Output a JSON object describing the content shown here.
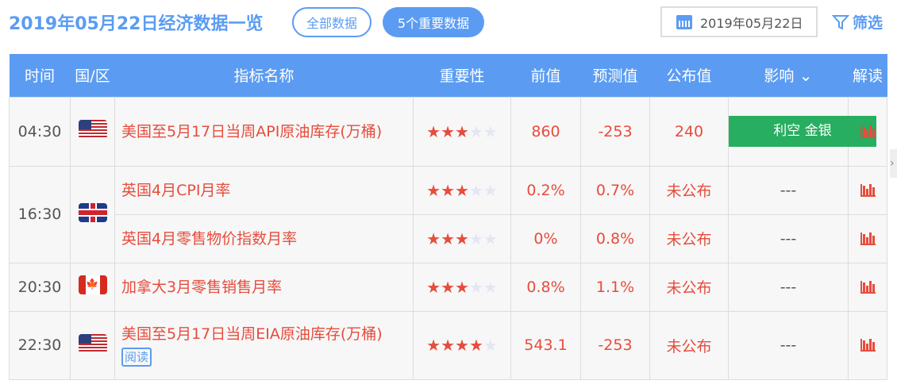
{
  "header": {
    "title": "2019年05月22日经济数据一览",
    "all_label": "全部数据",
    "important_label": "5个重要数据",
    "date_value": "2019年05月22日",
    "filter_label": "筛选"
  },
  "columns": [
    "时间",
    "国/区",
    "指标名称",
    "重要性",
    "前值",
    "预测值",
    "公布值",
    "影响",
    "解读"
  ],
  "rows": [
    {
      "time": "04:30",
      "country": "US",
      "name": "美国至5月17日当周API原油库存(万桶)",
      "stars": 3,
      "prev": "860",
      "forecast": "-253",
      "actual": "240",
      "impact": "利空 金银"
    },
    {
      "time": "16:30",
      "country": "UK",
      "name": "英国4月CPI月率",
      "stars": 3,
      "prev": "0.2%",
      "forecast": "0.7%",
      "actual": "未公布",
      "impact": "---"
    },
    {
      "time": "",
      "country": "UK",
      "name": "英国4月零售物价指数月率",
      "stars": 3,
      "prev": "0%",
      "forecast": "0.8%",
      "actual": "未公布",
      "impact": "---"
    },
    {
      "time": "20:30",
      "country": "CA",
      "name": "加拿大3月零售销售月率",
      "stars": 3,
      "prev": "0.8%",
      "forecast": "1.1%",
      "actual": "未公布",
      "impact": "---"
    },
    {
      "time": "22:30",
      "country": "US",
      "name": "美国至5月17日当周EIA原油库存(万桶)",
      "read_label": "阅读",
      "stars": 4,
      "prev": "543.1",
      "forecast": "-253",
      "actual": "未公布",
      "impact": "---"
    }
  ],
  "colors": {
    "accent": "#5b9cf2",
    "red": "#e74c3c",
    "green": "#27ae60"
  }
}
